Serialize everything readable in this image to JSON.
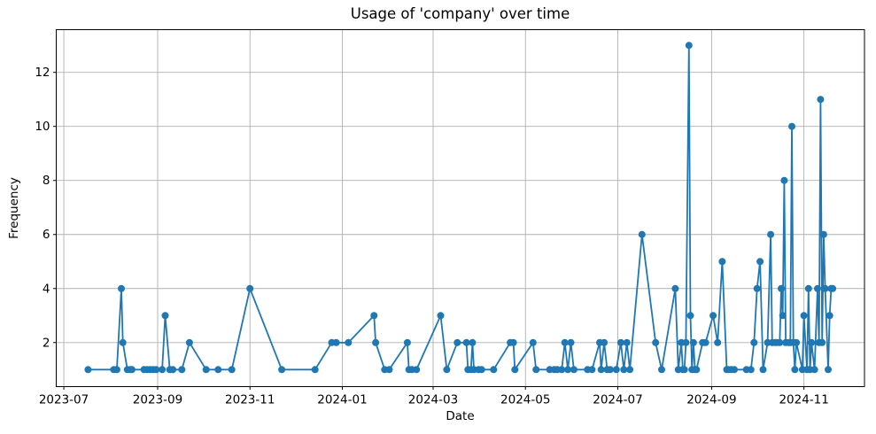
{
  "chart": {
    "title": "Usage of 'company' over time",
    "xlabel": "Date",
    "ylabel": "Frequency"
  },
  "chart_data": {
    "type": "line",
    "title": "Usage of 'company' over time",
    "xlabel": "Date",
    "ylabel": "Frequency",
    "legend": null,
    "grid": true,
    "line_color": "#1f77b4",
    "grid_color": "#b0b0b0",
    "spine_color": "#000000",
    "x_ticks": [
      "2023-07",
      "2023-09",
      "2023-11",
      "2024-01",
      "2024-03",
      "2024-05",
      "2024-07",
      "2024-09",
      "2024-11"
    ],
    "y_ticks": [
      2,
      4,
      6,
      8,
      10,
      12
    ],
    "xlim": [
      "2023-06-26",
      "2024-12-11"
    ],
    "ylim": [
      0.37,
      13.58
    ],
    "points": [
      [
        "2023-07-17",
        1
      ],
      [
        "2023-08-03",
        1
      ],
      [
        "2023-08-05",
        1
      ],
      [
        "2023-08-08",
        4
      ],
      [
        "2023-08-09",
        2
      ],
      [
        "2023-08-12",
        1
      ],
      [
        "2023-08-14",
        1
      ],
      [
        "2023-08-15",
        1
      ],
      [
        "2023-08-23",
        1
      ],
      [
        "2023-08-25",
        1
      ],
      [
        "2023-08-27",
        1
      ],
      [
        "2023-08-29",
        1
      ],
      [
        "2023-08-31",
        1
      ],
      [
        "2023-09-04",
        1
      ],
      [
        "2023-09-06",
        3
      ],
      [
        "2023-09-09",
        1
      ],
      [
        "2023-09-11",
        1
      ],
      [
        "2023-09-17",
        1
      ],
      [
        "2023-09-22",
        2
      ],
      [
        "2023-10-03",
        1
      ],
      [
        "2023-10-11",
        1
      ],
      [
        "2023-10-20",
        1
      ],
      [
        "2023-11-01",
        4
      ],
      [
        "2023-11-22",
        1
      ],
      [
        "2023-12-14",
        1
      ],
      [
        "2023-12-25",
        2
      ],
      [
        "2023-12-28",
        2
      ],
      [
        "2024-01-05",
        2
      ],
      [
        "2024-01-22",
        3
      ],
      [
        "2024-01-23",
        2
      ],
      [
        "2024-01-29",
        1
      ],
      [
        "2024-02-01",
        1
      ],
      [
        "2024-02-13",
        2
      ],
      [
        "2024-02-14",
        1
      ],
      [
        "2024-02-16",
        1
      ],
      [
        "2024-02-19",
        1
      ],
      [
        "2024-03-06",
        3
      ],
      [
        "2024-03-10",
        1
      ],
      [
        "2024-03-17",
        2
      ],
      [
        "2024-03-23",
        2
      ],
      [
        "2024-03-24",
        1
      ],
      [
        "2024-03-26",
        1
      ],
      [
        "2024-03-27",
        2
      ],
      [
        "2024-03-28",
        1
      ],
      [
        "2024-03-31",
        1
      ],
      [
        "2024-04-02",
        1
      ],
      [
        "2024-04-10",
        1
      ],
      [
        "2024-04-21",
        2
      ],
      [
        "2024-04-23",
        2
      ],
      [
        "2024-04-24",
        1
      ],
      [
        "2024-05-06",
        2
      ],
      [
        "2024-05-08",
        1
      ],
      [
        "2024-05-17",
        1
      ],
      [
        "2024-05-20",
        1
      ],
      [
        "2024-05-22",
        1
      ],
      [
        "2024-05-25",
        1
      ],
      [
        "2024-05-27",
        2
      ],
      [
        "2024-05-29",
        1
      ],
      [
        "2024-05-31",
        2
      ],
      [
        "2024-06-02",
        1
      ],
      [
        "2024-06-11",
        1
      ],
      [
        "2024-06-14",
        1
      ],
      [
        "2024-06-19",
        2
      ],
      [
        "2024-06-20",
        1
      ],
      [
        "2024-06-22",
        2
      ],
      [
        "2024-06-24",
        1
      ],
      [
        "2024-06-26",
        1
      ],
      [
        "2024-06-30",
        1
      ],
      [
        "2024-07-03",
        2
      ],
      [
        "2024-07-05",
        1
      ],
      [
        "2024-07-07",
        2
      ],
      [
        "2024-07-09",
        1
      ],
      [
        "2024-07-17",
        6
      ],
      [
        "2024-07-26",
        2
      ],
      [
        "2024-07-30",
        1
      ],
      [
        "2024-08-08",
        4
      ],
      [
        "2024-08-10",
        1
      ],
      [
        "2024-08-12",
        2
      ],
      [
        "2024-08-13",
        1
      ],
      [
        "2024-08-14",
        1
      ],
      [
        "2024-08-15",
        2
      ],
      [
        "2024-08-17",
        13
      ],
      [
        "2024-08-18",
        3
      ],
      [
        "2024-08-19",
        1
      ],
      [
        "2024-08-20",
        2
      ],
      [
        "2024-08-21",
        1
      ],
      [
        "2024-08-22",
        1
      ],
      [
        "2024-08-26",
        2
      ],
      [
        "2024-08-28",
        2
      ],
      [
        "2024-09-02",
        3
      ],
      [
        "2024-09-05",
        2
      ],
      [
        "2024-09-08",
        5
      ],
      [
        "2024-09-11",
        1
      ],
      [
        "2024-09-12",
        1
      ],
      [
        "2024-09-14",
        1
      ],
      [
        "2024-09-16",
        1
      ],
      [
        "2024-09-24",
        1
      ],
      [
        "2024-09-27",
        1
      ],
      [
        "2024-09-29",
        2
      ],
      [
        "2024-10-01",
        4
      ],
      [
        "2024-10-03",
        5
      ],
      [
        "2024-10-05",
        1
      ],
      [
        "2024-10-08",
        2
      ],
      [
        "2024-10-10",
        6
      ],
      [
        "2024-10-11",
        2
      ],
      [
        "2024-10-13",
        2
      ],
      [
        "2024-10-14",
        2
      ],
      [
        "2024-10-16",
        2
      ],
      [
        "2024-10-17",
        4
      ],
      [
        "2024-10-18",
        3
      ],
      [
        "2024-10-19",
        8
      ],
      [
        "2024-10-20",
        2
      ],
      [
        "2024-10-22",
        2
      ],
      [
        "2024-10-23",
        2
      ],
      [
        "2024-10-24",
        10
      ],
      [
        "2024-10-25",
        2
      ],
      [
        "2024-10-26",
        1
      ],
      [
        "2024-10-27",
        2
      ],
      [
        "2024-10-31",
        1
      ],
      [
        "2024-11-01",
        3
      ],
      [
        "2024-11-03",
        1
      ],
      [
        "2024-11-04",
        4
      ],
      [
        "2024-11-05",
        1
      ],
      [
        "2024-11-06",
        2
      ],
      [
        "2024-11-08",
        1
      ],
      [
        "2024-11-10",
        4
      ],
      [
        "2024-11-11",
        2
      ],
      [
        "2024-11-12",
        11
      ],
      [
        "2024-11-13",
        2
      ],
      [
        "2024-11-14",
        6
      ],
      [
        "2024-11-15",
        4
      ],
      [
        "2024-11-17",
        1
      ],
      [
        "2024-11-18",
        3
      ],
      [
        "2024-11-19",
        4
      ],
      [
        "2024-11-20",
        4
      ]
    ]
  }
}
